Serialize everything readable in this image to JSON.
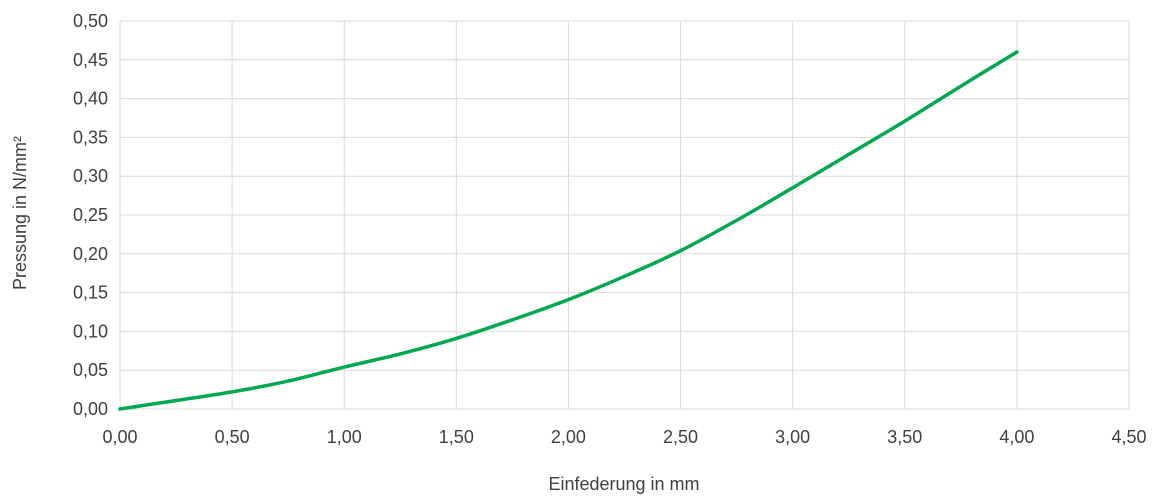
{
  "chart_data": {
    "type": "line",
    "title": "",
    "xlabel": "Einfederung in mm",
    "ylabel": "Pressung in N/mm²",
    "xlim": [
      0,
      4.5
    ],
    "ylim": [
      0,
      0.5
    ],
    "x_ticks": [
      "0,00",
      "0,50",
      "1,00",
      "1,50",
      "2,00",
      "2,50",
      "3,00",
      "3,50",
      "4,00",
      "4,50"
    ],
    "y_ticks": [
      "0,00",
      "0,05",
      "0,10",
      "0,15",
      "0,20",
      "0,25",
      "0,30",
      "0,35",
      "0,40",
      "0,45",
      "0,50"
    ],
    "grid": true,
    "legend": "none",
    "series": [
      {
        "color": "#00a84f",
        "x": [
          0.0,
          0.25,
          0.5,
          0.75,
          1.0,
          1.25,
          1.5,
          1.75,
          2.0,
          2.25,
          2.5,
          2.75,
          3.0,
          3.25,
          3.5,
          3.75,
          4.0
        ],
        "y": [
          0.0,
          0.011,
          0.022,
          0.036,
          0.054,
          0.071,
          0.091,
          0.115,
          0.141,
          0.171,
          0.204,
          0.243,
          0.285,
          0.328,
          0.371,
          0.416,
          0.46
        ]
      }
    ]
  }
}
